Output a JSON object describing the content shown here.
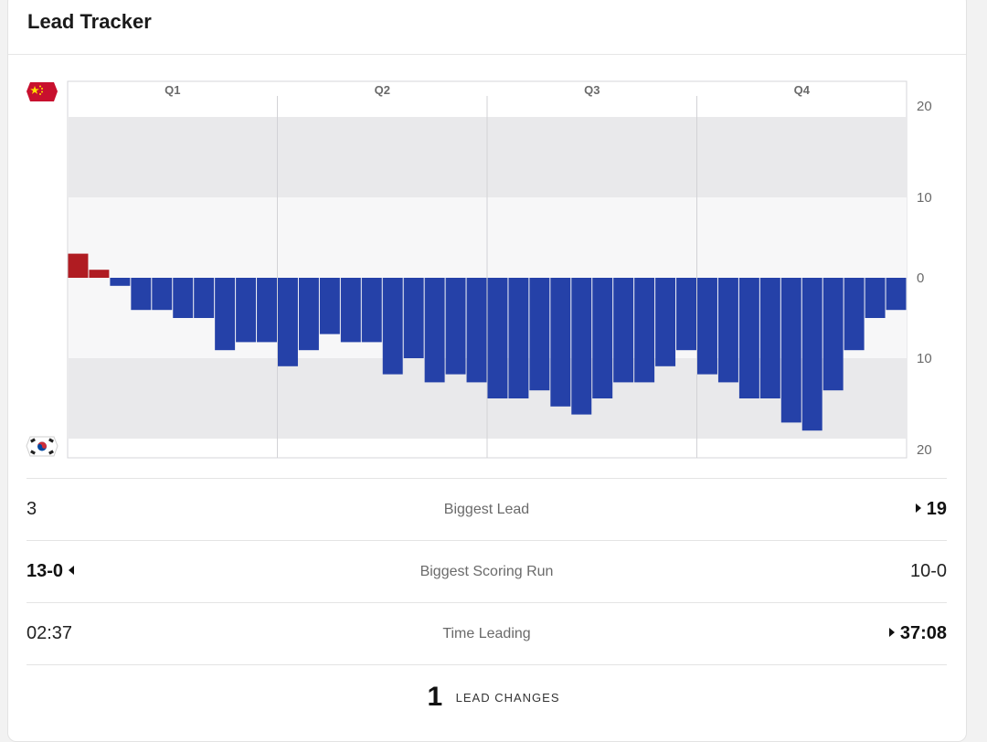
{
  "header": {
    "title": "Lead Tracker"
  },
  "teams": {
    "top": {
      "flag": "china-flag-icon",
      "color": "#b01c22"
    },
    "bottom": {
      "flag": "korea-flag-icon",
      "color": "#2541a8"
    }
  },
  "chart_data": {
    "type": "bar",
    "title": "",
    "quarters": [
      "Q1",
      "Q2",
      "Q3",
      "Q4"
    ],
    "y_ticks": [
      "20",
      "10",
      "0",
      "10",
      "20"
    ],
    "ylim": [
      -20,
      20
    ],
    "grid": true,
    "positive_color": "#b01c22",
    "negative_color": "#2541a8",
    "values": [
      3,
      1,
      -1,
      -4,
      -4,
      -5,
      -5,
      -9,
      -8,
      -8,
      -11,
      -9,
      -7,
      -8,
      -8,
      -12,
      -10,
      -13,
      -12,
      -13,
      -15,
      -15,
      -14,
      -16,
      -17,
      -15,
      -13,
      -13,
      -11,
      -9,
      -12,
      -13,
      -15,
      -15,
      -18,
      -19,
      -14,
      -9,
      -5,
      -4
    ]
  },
  "stats": {
    "biggest_lead": {
      "label": "Biggest Lead",
      "left": "3",
      "right": "19"
    },
    "biggest_run": {
      "label": "Biggest Scoring Run",
      "left": "13-0",
      "right": "10-0"
    },
    "time_leading": {
      "label": "Time Leading",
      "left": "02:37",
      "right": "37:08"
    }
  },
  "lead_changes": {
    "count": "1",
    "label": "LEAD CHANGES"
  }
}
